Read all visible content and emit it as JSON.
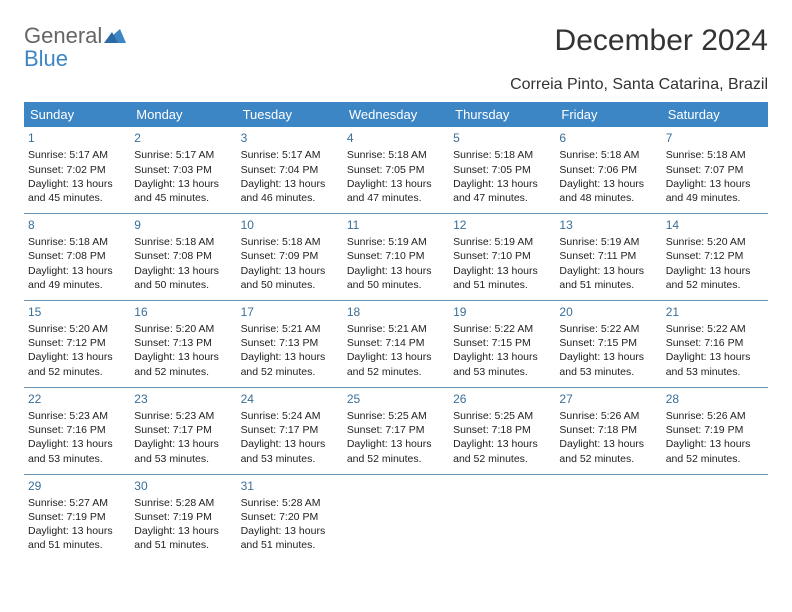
{
  "brand": {
    "line1": "General",
    "line2": "Blue",
    "text_color": "#666666",
    "accent_color": "#3d86c6"
  },
  "title": "December 2024",
  "location": "Correia Pinto, Santa Catarina, Brazil",
  "weekdays": [
    "Sunday",
    "Monday",
    "Tuesday",
    "Wednesday",
    "Thursday",
    "Friday",
    "Saturday"
  ],
  "colors": {
    "header_bg": "#3d86c6",
    "header_text": "#ffffff",
    "row_divider": "#6a93b8",
    "daynum_color": "#3a6f99",
    "body_text": "#222222",
    "background": "#ffffff"
  },
  "font_sizes_pt": {
    "title": 22,
    "subtitle": 12,
    "th": 10,
    "cell": 8,
    "daynum": 9
  },
  "rows": [
    [
      {
        "day": "1",
        "sunrise": "Sunrise: 5:17 AM",
        "sunset": "Sunset: 7:02 PM",
        "day1": "Daylight: 13 hours",
        "day2": "and 45 minutes."
      },
      {
        "day": "2",
        "sunrise": "Sunrise: 5:17 AM",
        "sunset": "Sunset: 7:03 PM",
        "day1": "Daylight: 13 hours",
        "day2": "and 45 minutes."
      },
      {
        "day": "3",
        "sunrise": "Sunrise: 5:17 AM",
        "sunset": "Sunset: 7:04 PM",
        "day1": "Daylight: 13 hours",
        "day2": "and 46 minutes."
      },
      {
        "day": "4",
        "sunrise": "Sunrise: 5:18 AM",
        "sunset": "Sunset: 7:05 PM",
        "day1": "Daylight: 13 hours",
        "day2": "and 47 minutes."
      },
      {
        "day": "5",
        "sunrise": "Sunrise: 5:18 AM",
        "sunset": "Sunset: 7:05 PM",
        "day1": "Daylight: 13 hours",
        "day2": "and 47 minutes."
      },
      {
        "day": "6",
        "sunrise": "Sunrise: 5:18 AM",
        "sunset": "Sunset: 7:06 PM",
        "day1": "Daylight: 13 hours",
        "day2": "and 48 minutes."
      },
      {
        "day": "7",
        "sunrise": "Sunrise: 5:18 AM",
        "sunset": "Sunset: 7:07 PM",
        "day1": "Daylight: 13 hours",
        "day2": "and 49 minutes."
      }
    ],
    [
      {
        "day": "8",
        "sunrise": "Sunrise: 5:18 AM",
        "sunset": "Sunset: 7:08 PM",
        "day1": "Daylight: 13 hours",
        "day2": "and 49 minutes."
      },
      {
        "day": "9",
        "sunrise": "Sunrise: 5:18 AM",
        "sunset": "Sunset: 7:08 PM",
        "day1": "Daylight: 13 hours",
        "day2": "and 50 minutes."
      },
      {
        "day": "10",
        "sunrise": "Sunrise: 5:18 AM",
        "sunset": "Sunset: 7:09 PM",
        "day1": "Daylight: 13 hours",
        "day2": "and 50 minutes."
      },
      {
        "day": "11",
        "sunrise": "Sunrise: 5:19 AM",
        "sunset": "Sunset: 7:10 PM",
        "day1": "Daylight: 13 hours",
        "day2": "and 50 minutes."
      },
      {
        "day": "12",
        "sunrise": "Sunrise: 5:19 AM",
        "sunset": "Sunset: 7:10 PM",
        "day1": "Daylight: 13 hours",
        "day2": "and 51 minutes."
      },
      {
        "day": "13",
        "sunrise": "Sunrise: 5:19 AM",
        "sunset": "Sunset: 7:11 PM",
        "day1": "Daylight: 13 hours",
        "day2": "and 51 minutes."
      },
      {
        "day": "14",
        "sunrise": "Sunrise: 5:20 AM",
        "sunset": "Sunset: 7:12 PM",
        "day1": "Daylight: 13 hours",
        "day2": "and 52 minutes."
      }
    ],
    [
      {
        "day": "15",
        "sunrise": "Sunrise: 5:20 AM",
        "sunset": "Sunset: 7:12 PM",
        "day1": "Daylight: 13 hours",
        "day2": "and 52 minutes."
      },
      {
        "day": "16",
        "sunrise": "Sunrise: 5:20 AM",
        "sunset": "Sunset: 7:13 PM",
        "day1": "Daylight: 13 hours",
        "day2": "and 52 minutes."
      },
      {
        "day": "17",
        "sunrise": "Sunrise: 5:21 AM",
        "sunset": "Sunset: 7:13 PM",
        "day1": "Daylight: 13 hours",
        "day2": "and 52 minutes."
      },
      {
        "day": "18",
        "sunrise": "Sunrise: 5:21 AM",
        "sunset": "Sunset: 7:14 PM",
        "day1": "Daylight: 13 hours",
        "day2": "and 52 minutes."
      },
      {
        "day": "19",
        "sunrise": "Sunrise: 5:22 AM",
        "sunset": "Sunset: 7:15 PM",
        "day1": "Daylight: 13 hours",
        "day2": "and 53 minutes."
      },
      {
        "day": "20",
        "sunrise": "Sunrise: 5:22 AM",
        "sunset": "Sunset: 7:15 PM",
        "day1": "Daylight: 13 hours",
        "day2": "and 53 minutes."
      },
      {
        "day": "21",
        "sunrise": "Sunrise: 5:22 AM",
        "sunset": "Sunset: 7:16 PM",
        "day1": "Daylight: 13 hours",
        "day2": "and 53 minutes."
      }
    ],
    [
      {
        "day": "22",
        "sunrise": "Sunrise: 5:23 AM",
        "sunset": "Sunset: 7:16 PM",
        "day1": "Daylight: 13 hours",
        "day2": "and 53 minutes."
      },
      {
        "day": "23",
        "sunrise": "Sunrise: 5:23 AM",
        "sunset": "Sunset: 7:17 PM",
        "day1": "Daylight: 13 hours",
        "day2": "and 53 minutes."
      },
      {
        "day": "24",
        "sunrise": "Sunrise: 5:24 AM",
        "sunset": "Sunset: 7:17 PM",
        "day1": "Daylight: 13 hours",
        "day2": "and 53 minutes."
      },
      {
        "day": "25",
        "sunrise": "Sunrise: 5:25 AM",
        "sunset": "Sunset: 7:17 PM",
        "day1": "Daylight: 13 hours",
        "day2": "and 52 minutes."
      },
      {
        "day": "26",
        "sunrise": "Sunrise: 5:25 AM",
        "sunset": "Sunset: 7:18 PM",
        "day1": "Daylight: 13 hours",
        "day2": "and 52 minutes."
      },
      {
        "day": "27",
        "sunrise": "Sunrise: 5:26 AM",
        "sunset": "Sunset: 7:18 PM",
        "day1": "Daylight: 13 hours",
        "day2": "and 52 minutes."
      },
      {
        "day": "28",
        "sunrise": "Sunrise: 5:26 AM",
        "sunset": "Sunset: 7:19 PM",
        "day1": "Daylight: 13 hours",
        "day2": "and 52 minutes."
      }
    ],
    [
      {
        "day": "29",
        "sunrise": "Sunrise: 5:27 AM",
        "sunset": "Sunset: 7:19 PM",
        "day1": "Daylight: 13 hours",
        "day2": "and 51 minutes."
      },
      {
        "day": "30",
        "sunrise": "Sunrise: 5:28 AM",
        "sunset": "Sunset: 7:19 PM",
        "day1": "Daylight: 13 hours",
        "day2": "and 51 minutes."
      },
      {
        "day": "31",
        "sunrise": "Sunrise: 5:28 AM",
        "sunset": "Sunset: 7:20 PM",
        "day1": "Daylight: 13 hours",
        "day2": "and 51 minutes."
      },
      {
        "day": "",
        "sunrise": "",
        "sunset": "",
        "day1": "",
        "day2": ""
      },
      {
        "day": "",
        "sunrise": "",
        "sunset": "",
        "day1": "",
        "day2": ""
      },
      {
        "day": "",
        "sunrise": "",
        "sunset": "",
        "day1": "",
        "day2": ""
      },
      {
        "day": "",
        "sunrise": "",
        "sunset": "",
        "day1": "",
        "day2": ""
      }
    ]
  ]
}
